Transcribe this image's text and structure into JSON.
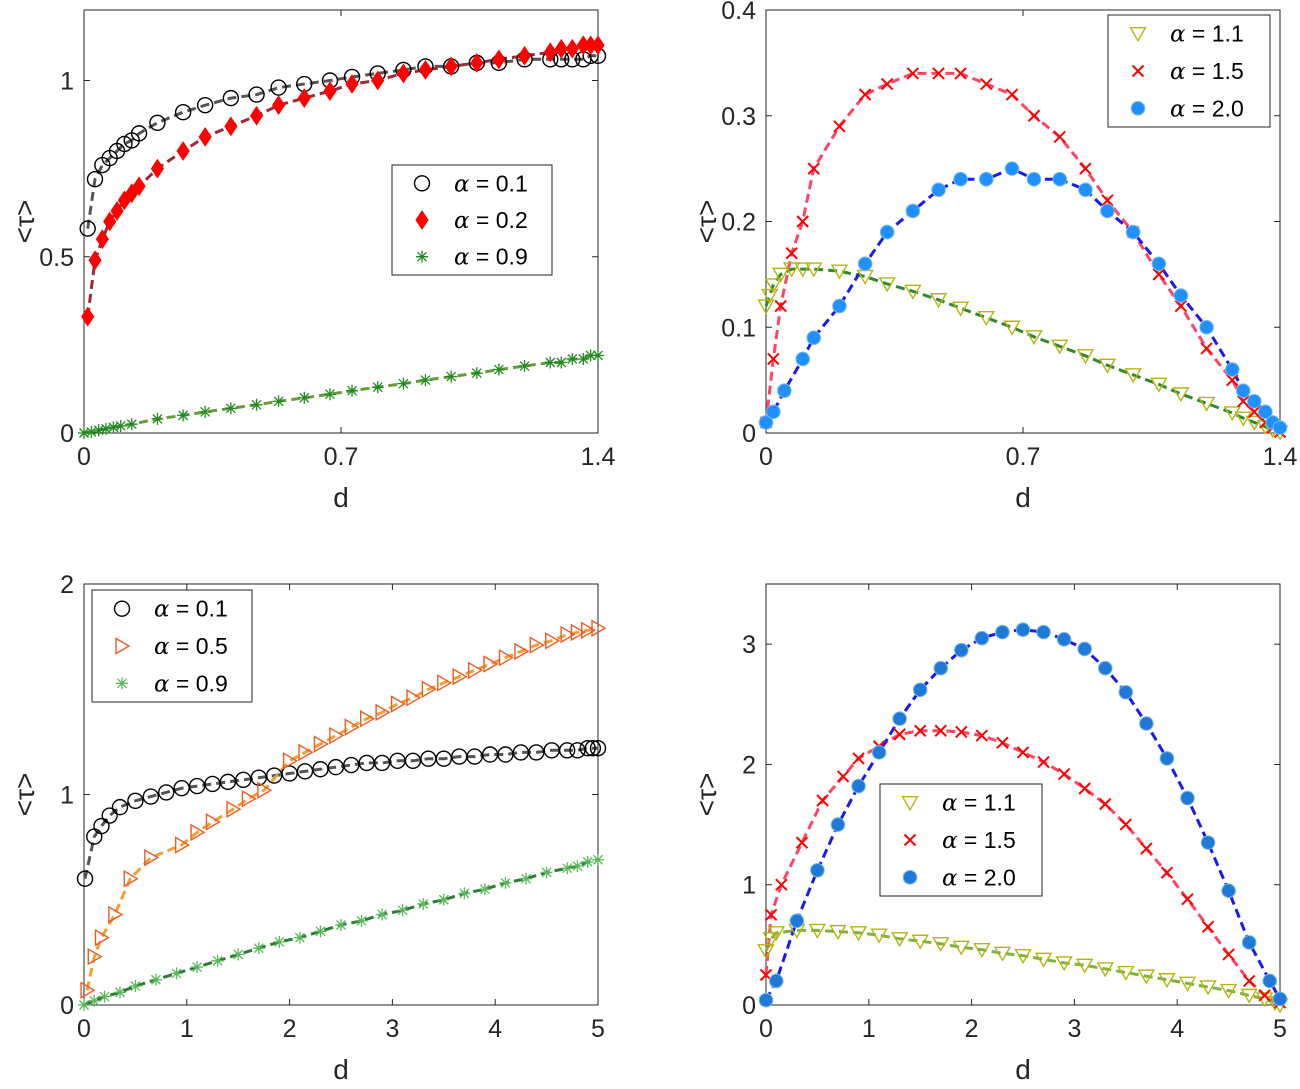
{
  "chart_data": [
    {
      "type": "scatter",
      "xlabel": "d",
      "ylabel": "<τ>",
      "xlim": [
        0,
        1.4
      ],
      "ylim": [
        0,
        1.2
      ],
      "xticks": [
        "0",
        "0.7",
        "1.4"
      ],
      "yticks": [
        "0",
        "0.5",
        "1"
      ],
      "legend_position": "middle-right",
      "series": [
        {
          "name": "α = 0.1",
          "marker": "circle",
          "color": "#000000",
          "fill": "none",
          "line_color": "#555555",
          "x": [
            0.01,
            0.03,
            0.05,
            0.07,
            0.09,
            0.11,
            0.13,
            0.15,
            0.2,
            0.27,
            0.33,
            0.4,
            0.47,
            0.53,
            0.6,
            0.67,
            0.73,
            0.8,
            0.87,
            0.93,
            1.0,
            1.07,
            1.13,
            1.2,
            1.27,
            1.3,
            1.33,
            1.36,
            1.38,
            1.4
          ],
          "y": [
            0.58,
            0.72,
            0.76,
            0.78,
            0.8,
            0.82,
            0.83,
            0.85,
            0.88,
            0.91,
            0.93,
            0.95,
            0.96,
            0.98,
            0.99,
            1.0,
            1.01,
            1.02,
            1.03,
            1.04,
            1.04,
            1.05,
            1.05,
            1.06,
            1.06,
            1.06,
            1.06,
            1.06,
            1.07,
            1.07
          ]
        },
        {
          "name": "α = 0.2",
          "marker": "diamond",
          "color": "#ff0000",
          "fill": "#ff0000",
          "line_color": "#a0283c",
          "x": [
            0.01,
            0.03,
            0.05,
            0.07,
            0.09,
            0.11,
            0.13,
            0.15,
            0.2,
            0.27,
            0.33,
            0.4,
            0.47,
            0.53,
            0.6,
            0.67,
            0.73,
            0.8,
            0.87,
            0.93,
            1.0,
            1.07,
            1.13,
            1.2,
            1.27,
            1.3,
            1.33,
            1.36,
            1.38,
            1.4
          ],
          "y": [
            0.33,
            0.49,
            0.55,
            0.6,
            0.63,
            0.66,
            0.68,
            0.7,
            0.75,
            0.8,
            0.84,
            0.87,
            0.9,
            0.93,
            0.95,
            0.97,
            0.99,
            1.0,
            1.02,
            1.03,
            1.04,
            1.05,
            1.06,
            1.07,
            1.08,
            1.09,
            1.09,
            1.1,
            1.1,
            1.1
          ]
        },
        {
          "name": "α = 0.9",
          "marker": "asterisk",
          "color": "#228b22",
          "fill": "none",
          "line_color": "#6a9a3a",
          "x": [
            0.0,
            0.02,
            0.04,
            0.06,
            0.08,
            0.1,
            0.13,
            0.2,
            0.27,
            0.33,
            0.4,
            0.47,
            0.53,
            0.6,
            0.67,
            0.73,
            0.8,
            0.87,
            0.93,
            1.0,
            1.07,
            1.13,
            1.2,
            1.27,
            1.3,
            1.33,
            1.36,
            1.38,
            1.4
          ],
          "y": [
            0.0,
            0.003,
            0.008,
            0.012,
            0.016,
            0.02,
            0.025,
            0.04,
            0.05,
            0.06,
            0.07,
            0.08,
            0.09,
            0.1,
            0.11,
            0.12,
            0.13,
            0.14,
            0.15,
            0.16,
            0.17,
            0.18,
            0.19,
            0.2,
            0.2,
            0.21,
            0.21,
            0.22,
            0.22
          ]
        }
      ]
    },
    {
      "type": "scatter",
      "xlabel": "d",
      "ylabel": "<τ>",
      "xlim": [
        0,
        1.4
      ],
      "ylim": [
        0,
        0.4
      ],
      "xticks": [
        "0",
        "0.7",
        "1.4"
      ],
      "yticks": [
        "0",
        "0.1",
        "0.2",
        "0.3",
        "0.4"
      ],
      "legend_position": "top-right",
      "series": [
        {
          "name": "α = 1.1",
          "marker": "triangle-down",
          "color": "#b5b510",
          "fill": "none",
          "line_color": "#2e8b2e",
          "x": [
            0.0,
            0.01,
            0.02,
            0.04,
            0.07,
            0.1,
            0.13,
            0.2,
            0.27,
            0.33,
            0.4,
            0.47,
            0.53,
            0.6,
            0.67,
            0.73,
            0.8,
            0.87,
            0.93,
            1.0,
            1.07,
            1.13,
            1.2,
            1.27,
            1.3,
            1.33,
            1.36,
            1.38,
            1.4
          ],
          "y": [
            0.12,
            0.13,
            0.14,
            0.15,
            0.155,
            0.155,
            0.155,
            0.153,
            0.148,
            0.141,
            0.134,
            0.126,
            0.118,
            0.109,
            0.1,
            0.091,
            0.082,
            0.073,
            0.064,
            0.055,
            0.046,
            0.037,
            0.028,
            0.019,
            0.014,
            0.01,
            0.006,
            0.003,
            0.001
          ]
        },
        {
          "name": "α = 1.5",
          "marker": "x",
          "color": "#ff0000",
          "fill": "none",
          "line_color": "#ff4466",
          "x": [
            0.0,
            0.02,
            0.04,
            0.07,
            0.1,
            0.13,
            0.2,
            0.27,
            0.33,
            0.4,
            0.47,
            0.53,
            0.6,
            0.67,
            0.73,
            0.8,
            0.87,
            0.93,
            1.0,
            1.07,
            1.13,
            1.2,
            1.27,
            1.3,
            1.33,
            1.36,
            1.38,
            1.4
          ],
          "y": [
            0.01,
            0.07,
            0.12,
            0.17,
            0.2,
            0.25,
            0.29,
            0.32,
            0.33,
            0.34,
            0.34,
            0.34,
            0.33,
            0.32,
            0.3,
            0.28,
            0.25,
            0.22,
            0.19,
            0.15,
            0.12,
            0.08,
            0.05,
            0.03,
            0.02,
            0.01,
            0.005,
            0.001
          ]
        },
        {
          "name": "α = 2.0",
          "marker": "filled-circle",
          "color": "#1e90ff",
          "fill": "#1e90ff",
          "line_color": "#1a1aee",
          "x": [
            0.0,
            0.02,
            0.05,
            0.1,
            0.13,
            0.2,
            0.27,
            0.33,
            0.4,
            0.47,
            0.53,
            0.6,
            0.67,
            0.73,
            0.8,
            0.87,
            0.93,
            1.0,
            1.07,
            1.13,
            1.2,
            1.27,
            1.3,
            1.33,
            1.36,
            1.38,
            1.4
          ],
          "y": [
            0.01,
            0.02,
            0.04,
            0.07,
            0.09,
            0.12,
            0.16,
            0.19,
            0.21,
            0.23,
            0.24,
            0.24,
            0.25,
            0.24,
            0.24,
            0.23,
            0.21,
            0.19,
            0.16,
            0.13,
            0.1,
            0.06,
            0.04,
            0.03,
            0.02,
            0.01,
            0.005
          ]
        }
      ]
    },
    {
      "type": "scatter",
      "xlabel": "d",
      "ylabel": "<τ>",
      "xlim": [
        0,
        5
      ],
      "ylim": [
        0,
        2
      ],
      "xticks": [
        "0",
        "1",
        "2",
        "3",
        "4",
        "5"
      ],
      "yticks": [
        "0",
        "1",
        "2"
      ],
      "legend_position": "top-left",
      "series": [
        {
          "name": "α = 0.1",
          "marker": "circle",
          "color": "#000000",
          "fill": "none",
          "line_color": "#555555",
          "x": [
            0.01,
            0.1,
            0.17,
            0.25,
            0.35,
            0.5,
            0.65,
            0.8,
            0.95,
            1.1,
            1.25,
            1.4,
            1.55,
            1.7,
            1.85,
            2.0,
            2.15,
            2.3,
            2.45,
            2.6,
            2.75,
            2.9,
            3.05,
            3.2,
            3.35,
            3.5,
            3.65,
            3.8,
            3.95,
            4.1,
            4.25,
            4.4,
            4.55,
            4.7,
            4.8,
            4.9,
            4.95,
            5.0
          ],
          "y": [
            0.6,
            0.8,
            0.85,
            0.9,
            0.94,
            0.97,
            0.99,
            1.01,
            1.03,
            1.04,
            1.05,
            1.06,
            1.07,
            1.08,
            1.09,
            1.1,
            1.11,
            1.12,
            1.13,
            1.14,
            1.15,
            1.15,
            1.16,
            1.16,
            1.17,
            1.17,
            1.18,
            1.18,
            1.19,
            1.19,
            1.2,
            1.2,
            1.21,
            1.21,
            1.21,
            1.22,
            1.22,
            1.22
          ]
        },
        {
          "name": "α = 0.5",
          "marker": "triangle-right",
          "color": "#ee5a24",
          "fill": "none",
          "line_color": "#f0a030",
          "x": [
            0.03,
            0.1,
            0.17,
            0.3,
            0.45,
            0.65,
            0.95,
            1.1,
            1.25,
            1.45,
            1.6,
            1.75,
            2.0,
            2.15,
            2.3,
            2.45,
            2.6,
            2.75,
            2.9,
            3.05,
            3.2,
            3.35,
            3.5,
            3.65,
            3.8,
            3.95,
            4.1,
            4.25,
            4.4,
            4.55,
            4.7,
            4.8,
            4.9,
            5.0
          ],
          "y": [
            0.07,
            0.23,
            0.32,
            0.43,
            0.6,
            0.7,
            0.76,
            0.82,
            0.87,
            0.93,
            0.98,
            1.02,
            1.16,
            1.2,
            1.24,
            1.28,
            1.32,
            1.36,
            1.39,
            1.43,
            1.46,
            1.5,
            1.53,
            1.56,
            1.59,
            1.62,
            1.65,
            1.68,
            1.71,
            1.73,
            1.76,
            1.77,
            1.78,
            1.79
          ]
        },
        {
          "name": "α = 0.9",
          "marker": "asterisk",
          "color": "#5cb85c",
          "fill": "none",
          "line_color": "#2e7d32",
          "x": [
            0.0,
            0.1,
            0.2,
            0.35,
            0.5,
            0.7,
            0.9,
            1.1,
            1.3,
            1.5,
            1.7,
            1.9,
            2.1,
            2.3,
            2.5,
            2.7,
            2.9,
            3.1,
            3.3,
            3.5,
            3.7,
            3.9,
            4.1,
            4.3,
            4.5,
            4.7,
            4.8,
            4.9,
            5.0
          ],
          "y": [
            0.0,
            0.02,
            0.04,
            0.06,
            0.09,
            0.12,
            0.15,
            0.18,
            0.21,
            0.24,
            0.27,
            0.3,
            0.32,
            0.35,
            0.38,
            0.4,
            0.43,
            0.45,
            0.48,
            0.5,
            0.53,
            0.55,
            0.58,
            0.6,
            0.63,
            0.65,
            0.66,
            0.68,
            0.69
          ]
        }
      ]
    },
    {
      "type": "scatter",
      "xlabel": "d",
      "ylabel": "<τ>",
      "xlim": [
        0,
        5
      ],
      "ylim": [
        0,
        3.5
      ],
      "xticks": [
        "0",
        "1",
        "2",
        "3",
        "4",
        "5"
      ],
      "yticks": [
        "0",
        "1",
        "2",
        "3"
      ],
      "legend_position": "middle-left",
      "series": [
        {
          "name": "α = 1.1",
          "marker": "triangle-down",
          "color": "#b5b510",
          "fill": "none",
          "line_color": "#7cb342",
          "x": [
            0.0,
            0.05,
            0.1,
            0.3,
            0.5,
            0.7,
            0.9,
            1.1,
            1.3,
            1.5,
            1.7,
            1.9,
            2.1,
            2.3,
            2.5,
            2.7,
            2.9,
            3.1,
            3.3,
            3.5,
            3.7,
            3.9,
            4.1,
            4.3,
            4.5,
            4.7,
            4.85,
            4.95,
            5.0
          ],
          "y": [
            0.45,
            0.55,
            0.6,
            0.62,
            0.62,
            0.61,
            0.6,
            0.58,
            0.55,
            0.53,
            0.51,
            0.48,
            0.46,
            0.43,
            0.41,
            0.38,
            0.35,
            0.33,
            0.3,
            0.27,
            0.24,
            0.21,
            0.18,
            0.15,
            0.12,
            0.08,
            0.05,
            0.02,
            0.0
          ]
        },
        {
          "name": "α = 1.5",
          "marker": "x",
          "color": "#ff0000",
          "fill": "none",
          "line_color": "#ff4466",
          "x": [
            0.0,
            0.05,
            0.15,
            0.35,
            0.55,
            0.75,
            0.9,
            1.1,
            1.3,
            1.5,
            1.7,
            1.9,
            2.1,
            2.3,
            2.5,
            2.7,
            2.9,
            3.1,
            3.3,
            3.5,
            3.7,
            3.9,
            4.1,
            4.3,
            4.5,
            4.7,
            4.85,
            5.0
          ],
          "y": [
            0.25,
            0.75,
            1.0,
            1.35,
            1.7,
            1.9,
            2.05,
            2.15,
            2.25,
            2.28,
            2.28,
            2.27,
            2.24,
            2.18,
            2.1,
            2.02,
            1.92,
            1.8,
            1.67,
            1.5,
            1.3,
            1.1,
            0.88,
            0.65,
            0.42,
            0.2,
            0.08,
            0.02
          ]
        },
        {
          "name": "α = 2.0",
          "marker": "filled-circle",
          "color": "#1e7ad6",
          "fill": "#1e7ad6",
          "line_color": "#1a1aee",
          "x": [
            0.0,
            0.1,
            0.3,
            0.5,
            0.7,
            0.9,
            1.1,
            1.3,
            1.5,
            1.7,
            1.9,
            2.1,
            2.3,
            2.5,
            2.7,
            2.9,
            3.1,
            3.3,
            3.5,
            3.7,
            3.9,
            4.1,
            4.3,
            4.5,
            4.7,
            4.9,
            5.0
          ],
          "y": [
            0.04,
            0.2,
            0.7,
            1.12,
            1.5,
            1.82,
            2.1,
            2.38,
            2.62,
            2.8,
            2.95,
            3.05,
            3.1,
            3.12,
            3.1,
            3.04,
            2.96,
            2.8,
            2.6,
            2.34,
            2.05,
            1.72,
            1.35,
            0.95,
            0.52,
            0.2,
            0.05
          ]
        }
      ]
    }
  ]
}
